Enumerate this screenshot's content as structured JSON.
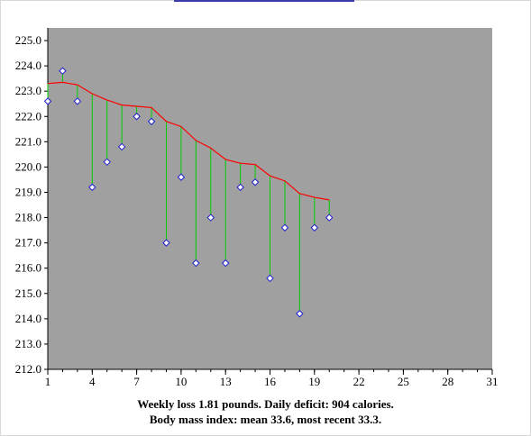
{
  "chart_data": {
    "type": "line",
    "x_ticks": [
      1,
      4,
      7,
      10,
      13,
      16,
      19,
      22,
      25,
      28,
      31
    ],
    "y_ticks": [
      "212.0",
      "213.0",
      "214.0",
      "215.0",
      "216.0",
      "217.0",
      "218.0",
      "219.0",
      "220.0",
      "221.0",
      "222.0",
      "223.0",
      "224.0",
      "225.0"
    ],
    "xlim": [
      1,
      31
    ],
    "ylim": [
      212,
      225.5
    ],
    "colors": {
      "plot_bg": "#a0a0a0",
      "trend": "#ff0000",
      "stem": "#00cc00",
      "marker_fill": "#ffffff",
      "marker_edge": "#1f1fd0"
    },
    "series": [
      {
        "kind": "weight",
        "x": [
          1,
          2,
          3,
          4,
          5,
          6,
          7,
          8,
          9,
          10,
          11,
          12,
          13,
          14,
          15,
          16,
          17,
          18,
          19,
          20
        ],
        "values": [
          222.6,
          223.8,
          222.6,
          219.2,
          220.2,
          220.8,
          222.0,
          221.8,
          217.0,
          219.6,
          216.2,
          218.0,
          216.2,
          219.2,
          219.4,
          215.6,
          217.6,
          214.2,
          217.6,
          218.0
        ]
      },
      {
        "kind": "trend",
        "x": [
          1,
          2,
          3,
          4,
          5,
          6,
          7,
          8,
          9,
          10,
          11,
          12,
          13,
          14,
          15,
          16,
          17,
          18,
          19,
          20
        ],
        "values": [
          223.3,
          223.35,
          223.25,
          222.9,
          222.65,
          222.45,
          222.4,
          222.35,
          221.8,
          221.6,
          221.05,
          220.75,
          220.3,
          220.15,
          220.1,
          219.65,
          219.45,
          218.95,
          218.8,
          218.7
        ]
      }
    ]
  },
  "caption": {
    "line1": "Weekly loss 1.81 pounds. Daily deficit: 904 calories.",
    "line2": "Body mass index: mean 33.6, most recent 33.3."
  }
}
